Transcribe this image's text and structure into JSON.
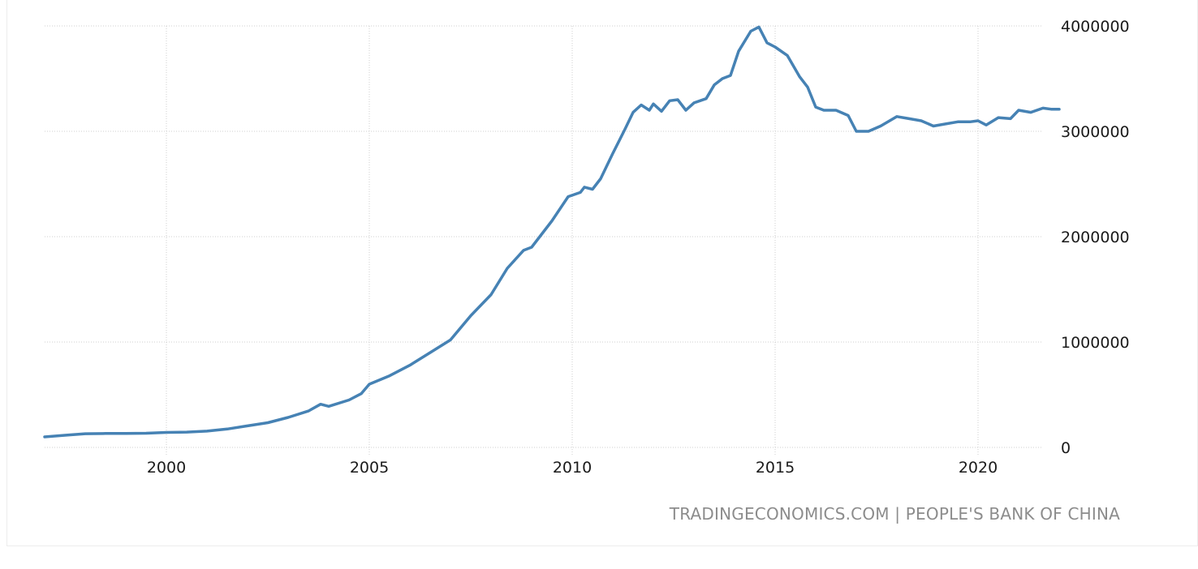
{
  "chart_data": {
    "type": "line",
    "title": "",
    "xlabel": "",
    "ylabel": "",
    "xlim": [
      1997.0,
      2022.0
    ],
    "ylim": [
      0,
      4000000
    ],
    "x_ticks": [
      "2000",
      "2005",
      "2010",
      "2015",
      "2020"
    ],
    "x_tick_values": [
      2000,
      2005,
      2010,
      2015,
      2020
    ],
    "y_ticks": [
      "0",
      "1000000",
      "2000000",
      "3000000",
      "4000000"
    ],
    "y_tick_values": [
      0,
      1000000,
      2000000,
      3000000,
      4000000
    ],
    "grid": true,
    "y_axis_side": "right",
    "line_color": "#4682b4",
    "series": [
      {
        "points": [
          [
            1997.0,
            100000
          ],
          [
            1997.5,
            115000
          ],
          [
            1998.0,
            130000
          ],
          [
            1998.5,
            132000
          ],
          [
            1999.0,
            133000
          ],
          [
            1999.5,
            135000
          ],
          [
            2000.0,
            142000
          ],
          [
            2000.5,
            145000
          ],
          [
            2001.0,
            155000
          ],
          [
            2001.5,
            175000
          ],
          [
            2002.0,
            205000
          ],
          [
            2002.5,
            235000
          ],
          [
            2003.0,
            285000
          ],
          [
            2003.5,
            345000
          ],
          [
            2003.8,
            410000
          ],
          [
            2004.0,
            390000
          ],
          [
            2004.5,
            450000
          ],
          [
            2004.8,
            510000
          ],
          [
            2005.0,
            600000
          ],
          [
            2005.5,
            680000
          ],
          [
            2006.0,
            780000
          ],
          [
            2006.5,
            900000
          ],
          [
            2007.0,
            1020000
          ],
          [
            2007.5,
            1250000
          ],
          [
            2008.0,
            1450000
          ],
          [
            2008.4,
            1700000
          ],
          [
            2008.8,
            1870000
          ],
          [
            2009.0,
            1900000
          ],
          [
            2009.5,
            2150000
          ],
          [
            2009.9,
            2380000
          ],
          [
            2010.2,
            2420000
          ],
          [
            2010.3,
            2470000
          ],
          [
            2010.5,
            2450000
          ],
          [
            2010.7,
            2550000
          ],
          [
            2011.0,
            2790000
          ],
          [
            2011.3,
            3020000
          ],
          [
            2011.5,
            3180000
          ],
          [
            2011.7,
            3250000
          ],
          [
            2011.9,
            3200000
          ],
          [
            2012.0,
            3260000
          ],
          [
            2012.2,
            3190000
          ],
          [
            2012.4,
            3290000
          ],
          [
            2012.6,
            3300000
          ],
          [
            2012.8,
            3200000
          ],
          [
            2013.0,
            3270000
          ],
          [
            2013.3,
            3310000
          ],
          [
            2013.5,
            3440000
          ],
          [
            2013.7,
            3500000
          ],
          [
            2013.9,
            3530000
          ],
          [
            2014.1,
            3760000
          ],
          [
            2014.4,
            3950000
          ],
          [
            2014.6,
            3990000
          ],
          [
            2014.8,
            3840000
          ],
          [
            2015.0,
            3800000
          ],
          [
            2015.3,
            3720000
          ],
          [
            2015.6,
            3520000
          ],
          [
            2015.8,
            3420000
          ],
          [
            2016.0,
            3230000
          ],
          [
            2016.2,
            3200000
          ],
          [
            2016.5,
            3200000
          ],
          [
            2016.8,
            3150000
          ],
          [
            2017.0,
            3000000
          ],
          [
            2017.3,
            3000000
          ],
          [
            2017.6,
            3050000
          ],
          [
            2018.0,
            3140000
          ],
          [
            2018.3,
            3120000
          ],
          [
            2018.6,
            3100000
          ],
          [
            2018.9,
            3050000
          ],
          [
            2019.2,
            3070000
          ],
          [
            2019.5,
            3090000
          ],
          [
            2019.8,
            3090000
          ],
          [
            2020.0,
            3100000
          ],
          [
            2020.2,
            3060000
          ],
          [
            2020.5,
            3130000
          ],
          [
            2020.8,
            3120000
          ],
          [
            2021.0,
            3200000
          ],
          [
            2021.3,
            3180000
          ],
          [
            2021.6,
            3220000
          ],
          [
            2021.8,
            3210000
          ],
          [
            2022.0,
            3210000
          ]
        ]
      }
    ]
  },
  "source_credit": "TRADINGECONOMICS.COM | PEOPLE'S BANK OF CHINA"
}
